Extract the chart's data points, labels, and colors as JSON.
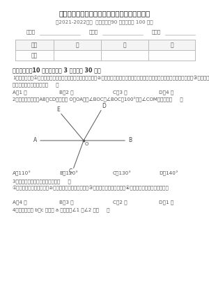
{
  "title": "七年级数学下册第五章相交线与平行线章节训练",
  "subtitle": "（2021-2022学年  考试时间：90 分钟；总分 100 分）",
  "header_labels": [
    "班级：",
    "姓名：",
    "总分："
  ],
  "table_row1": [
    "题号",
    "一",
    "二",
    "三"
  ],
  "table_row2": [
    "得分",
    "",
    "",
    ""
  ],
  "section1": "一、单选题（10 小题，每小题 3 分，共计 30 分）",
  "q1": "1．下列命题：①平面内，垂直于同一条直线的两条直线平行；②经过直线外一点，有且只有一条直线与这条直线平行，这条线段最短；③同旁内角互补，其中，正确命题的个数有（     ）",
  "q1_choices": [
    "A．1 个",
    "B．2 个",
    "C．3 个",
    "D．4 个"
  ],
  "q2": "2．如图，已知直线AB，CD相交于点 O，OA平分∠BOC，∠BOC＝100°，则∠COM的度数是（     ）",
  "q2_choices": [
    "A．110°",
    "B．120°",
    "C．130°",
    "D．140°"
  ],
  "q3": "3．下列命题中，真命题的个数是（     ）",
  "q3_sub": "①全等三角形的周长相等；②全等三角形的对应角相等；③全等三角形的面积相等；④面积相等的两个三角形全等。",
  "q3_choices": [
    "A．4 个",
    "B．3 个",
    "C．2 个",
    "D．1 个"
  ],
  "q4": "4．如图，直线 b、c 被直线 a 所截，则∠1 与∠2 是（     ）",
  "bg_color": "#ffffff",
  "text_color": "#555555",
  "title_color": "#222222",
  "table_border_color": "#bbbbbb",
  "line_color": "#666666"
}
